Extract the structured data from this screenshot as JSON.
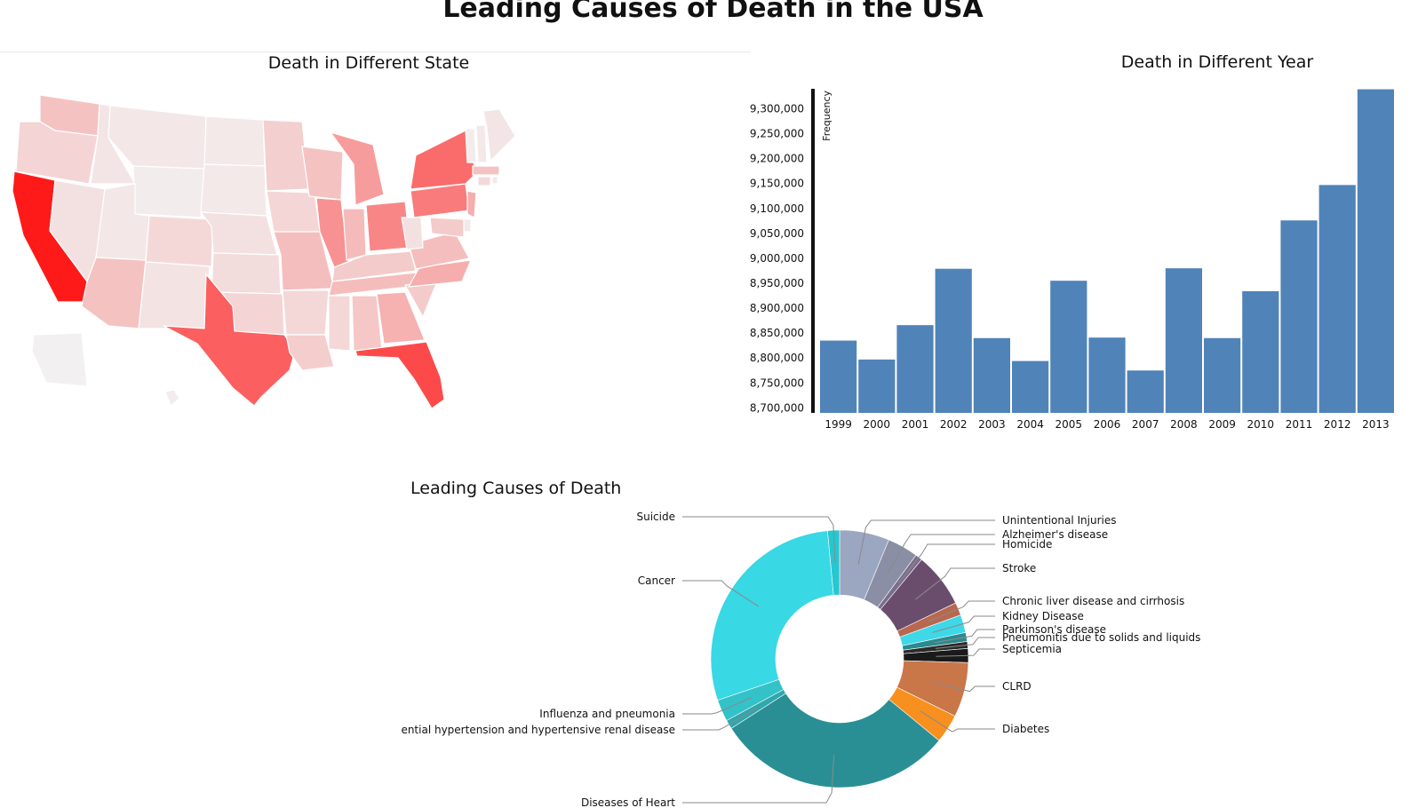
{
  "page_title": "Leading Causes of Death in the USA",
  "map": {
    "title": "Death in Different State",
    "color_low": "#f2f2f2",
    "color_high": "#ff1a1a",
    "states": [
      {
        "id": "WA",
        "intensity": 0.22
      },
      {
        "id": "OR",
        "intensity": 0.14
      },
      {
        "id": "CA",
        "intensity": 1.0
      },
      {
        "id": "NV",
        "intensity": 0.08
      },
      {
        "id": "ID",
        "intensity": 0.06
      },
      {
        "id": "MT",
        "intensity": 0.05
      },
      {
        "id": "WY",
        "intensity": 0.03
      },
      {
        "id": "UT",
        "intensity": 0.05
      },
      {
        "id": "AZ",
        "intensity": 0.22
      },
      {
        "id": "CO",
        "intensity": 0.12
      },
      {
        "id": "NM",
        "intensity": 0.07
      },
      {
        "id": "ND",
        "intensity": 0.04
      },
      {
        "id": "SD",
        "intensity": 0.04
      },
      {
        "id": "NE",
        "intensity": 0.08
      },
      {
        "id": "KS",
        "intensity": 0.1
      },
      {
        "id": "OK",
        "intensity": 0.14
      },
      {
        "id": "TX",
        "intensity": 0.68
      },
      {
        "id": "MN",
        "intensity": 0.16
      },
      {
        "id": "IA",
        "intensity": 0.13
      },
      {
        "id": "MO",
        "intensity": 0.24
      },
      {
        "id": "AR",
        "intensity": 0.12
      },
      {
        "id": "LA",
        "intensity": 0.17
      },
      {
        "id": "WI",
        "intensity": 0.22
      },
      {
        "id": "IL",
        "intensity": 0.45
      },
      {
        "id": "MI",
        "intensity": 0.4
      },
      {
        "id": "IN",
        "intensity": 0.26
      },
      {
        "id": "OH",
        "intensity": 0.5
      },
      {
        "id": "KY",
        "intensity": 0.18
      },
      {
        "id": "TN",
        "intensity": 0.25
      },
      {
        "id": "MS",
        "intensity": 0.12
      },
      {
        "id": "AL",
        "intensity": 0.2
      },
      {
        "id": "GA",
        "intensity": 0.3
      },
      {
        "id": "FL",
        "intensity": 0.78
      },
      {
        "id": "SC",
        "intensity": 0.18
      },
      {
        "id": "NC",
        "intensity": 0.32
      },
      {
        "id": "VA",
        "intensity": 0.24
      },
      {
        "id": "WV",
        "intensity": 0.08
      },
      {
        "id": "PA",
        "intensity": 0.55
      },
      {
        "id": "NY",
        "intensity": 0.62
      },
      {
        "id": "NJ",
        "intensity": 0.32
      },
      {
        "id": "DE",
        "intensity": 0.05
      },
      {
        "id": "MD",
        "intensity": 0.18
      },
      {
        "id": "CT",
        "intensity": 0.12
      },
      {
        "id": "RI",
        "intensity": 0.04
      },
      {
        "id": "MA",
        "intensity": 0.22
      },
      {
        "id": "VT",
        "intensity": 0.03
      },
      {
        "id": "NH",
        "intensity": 0.04
      },
      {
        "id": "ME",
        "intensity": 0.06
      },
      {
        "id": "AK",
        "intensity": 0.01
      },
      {
        "id": "HI",
        "intensity": 0.03
      }
    ]
  },
  "chart_data": [
    {
      "type": "bar",
      "title": "Death in Different Year",
      "ylabel": "Frequency",
      "xlabel": "",
      "categories": [
        "1999",
        "2000",
        "2001",
        "2002",
        "2003",
        "2004",
        "2005",
        "2006",
        "2007",
        "2008",
        "2009",
        "2010",
        "2011",
        "2012",
        "2013"
      ],
      "values": [
        8835000,
        8797000,
        8866000,
        8979000,
        8840000,
        8794000,
        8955000,
        8841000,
        8775000,
        8980000,
        8840000,
        8934000,
        9076000,
        9147000,
        9339000
      ],
      "yticks": [
        "8,700,000",
        "8,750,000",
        "8,800,000",
        "8,850,000",
        "8,900,000",
        "8,950,000",
        "9,000,000",
        "9,050,000",
        "9,100,000",
        "9,150,000",
        "9,200,000",
        "9,250,000",
        "9,300,000"
      ],
      "ylim": [
        8690000,
        9340000
      ],
      "bar_color": "#5083b8",
      "grid": false
    },
    {
      "type": "pie",
      "title": "Leading Causes of Death",
      "donut": true,
      "slices": [
        {
          "label": "Unintentional Injuries",
          "value": 5.0,
          "color": "#9ba6c0"
        },
        {
          "label": "Alzheimer's disease",
          "value": 3.1,
          "color": "#8a8fa6"
        },
        {
          "label": "Homicide",
          "value": 0.7,
          "color": "#7a6d8d"
        },
        {
          "label": "Stroke",
          "value": 5.5,
          "color": "#6a4d6c"
        },
        {
          "label": "Chronic liver disease and cirrhosis",
          "value": 1.3,
          "color": "#b8684f"
        },
        {
          "label": "Kidney Disease",
          "value": 1.8,
          "color": "#3ed8e8"
        },
        {
          "label": "Parkinson's disease",
          "value": 0.9,
          "color": "#2a8a8f"
        },
        {
          "label": "Pneumonitis due to solids and liquids",
          "value": 0.7,
          "color": "#2a2a2a"
        },
        {
          "label": "Septicemia",
          "value": 1.4,
          "color": "#1a1a1a"
        },
        {
          "label": "CLRD",
          "value": 5.5,
          "color": "#c97649"
        },
        {
          "label": "Diabetes",
          "value": 2.9,
          "color": "#f7901e"
        },
        {
          "label": "Diseases of Heart",
          "value": 24.0,
          "color": "#2a8f95"
        },
        {
          "label": "ential hypertension and hypertensive renal disease",
          "value": 0.9,
          "color": "#2fa7ad"
        },
        {
          "label": "Influenza and pneumonia",
          "value": 2.2,
          "color": "#33c2c8"
        },
        {
          "label": "Cancer",
          "value": 23.0,
          "color": "#38d8e4"
        },
        {
          "label": "Suicide",
          "value": 1.2,
          "color": "#25c7d2"
        }
      ]
    }
  ]
}
